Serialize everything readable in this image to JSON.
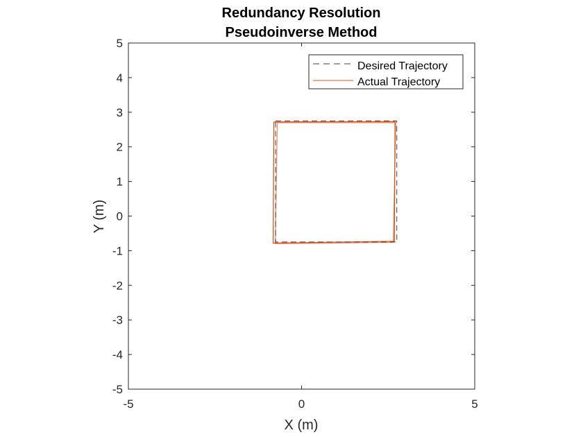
{
  "chart_data": {
    "type": "line",
    "title": [
      "Redundancy Resolution",
      "Pseudoinverse Method"
    ],
    "xlabel": "X (m)",
    "ylabel": "Y (m)",
    "xlim": [
      -5,
      5
    ],
    "ylim": [
      -5,
      5
    ],
    "xticks": [
      -5,
      0,
      5
    ],
    "yticks": [
      -5,
      -4,
      -3,
      -2,
      -1,
      0,
      1,
      2,
      3,
      4,
      5
    ],
    "grid": false,
    "legend_position": "top-right",
    "series": [
      {
        "name": "Desired Trajectory",
        "style": "dashed",
        "color": "#404040",
        "x": [
          -0.75,
          2.75,
          2.75,
          -0.75,
          -0.75
        ],
        "y": [
          2.75,
          2.75,
          -0.75,
          -0.75,
          2.75
        ]
      },
      {
        "name": "Actual Trajectory",
        "style": "solid",
        "color": "#D95319",
        "x": [
          -0.8,
          2.7,
          2.68,
          -0.82,
          -0.8
        ],
        "y": [
          2.72,
          2.73,
          -0.73,
          -0.78,
          2.72
        ]
      },
      {
        "name": "",
        "style": "solid",
        "color": "#F08A66",
        "x": [
          -0.7,
          2.72,
          2.65,
          -0.76,
          -0.7
        ],
        "y": [
          2.7,
          2.7,
          -0.76,
          -0.8,
          2.7
        ]
      }
    ]
  }
}
